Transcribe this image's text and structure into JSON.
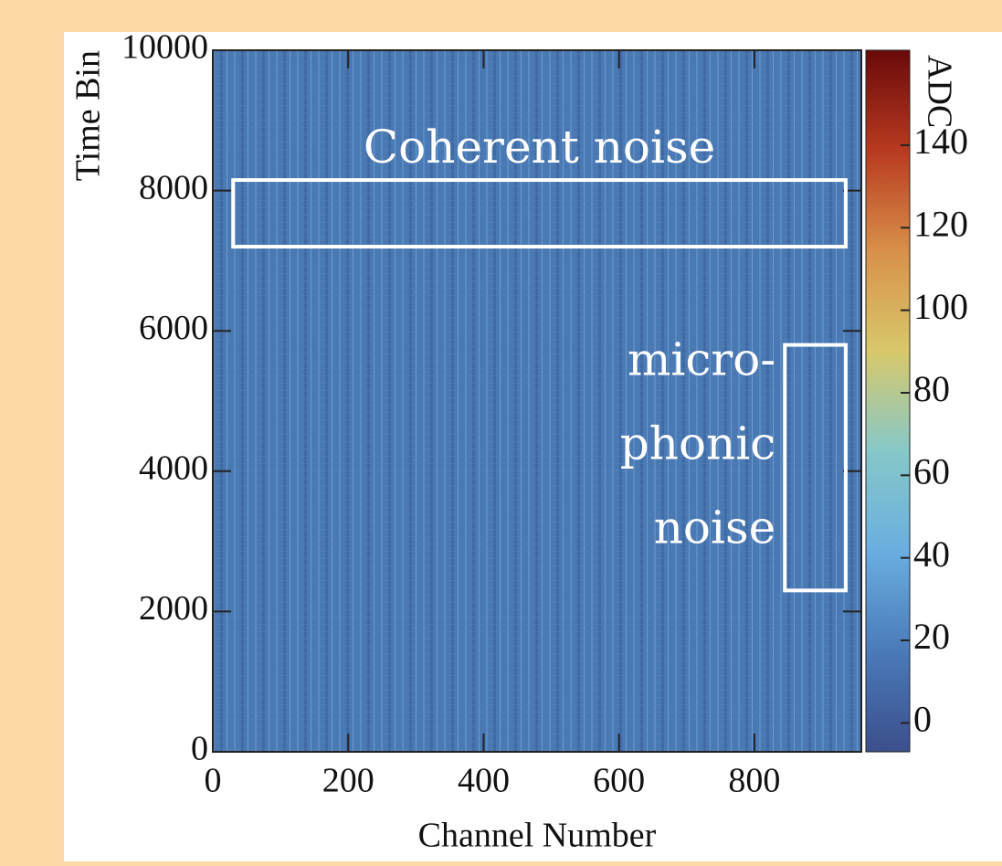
{
  "chart_data": {
    "type": "heatmap",
    "x_label": "Channel Number",
    "y_label": "Time Bin",
    "colorbar_label": "ADC",
    "xlim": [
      0,
      958
    ],
    "xticks": [
      0,
      200,
      400,
      600,
      800
    ],
    "ylim": [
      0,
      10000
    ],
    "yticks": [
      0,
      2000,
      4000,
      6000,
      8000,
      10000
    ],
    "clim": [
      -7,
      163
    ],
    "cticks": [
      0,
      20,
      40,
      60,
      80,
      100,
      120,
      140
    ],
    "colorscale": [
      "#3b4f8c",
      "#4a7ab8",
      "#6aaee0",
      "#86c8c8",
      "#d8c86a",
      "#d8904a",
      "#b83a20",
      "#6a0a0a"
    ],
    "annotations": [
      {
        "lines": [
          "Coherent noise"
        ],
        "box": {
          "x": [
            30,
            935
          ],
          "y": [
            7200,
            8150
          ]
        }
      },
      {
        "lines": [
          "micro-",
          "phonic",
          "noise"
        ],
        "box": {
          "x": [
            845,
            935
          ],
          "y": [
            2300,
            5800
          ]
        }
      }
    ]
  }
}
